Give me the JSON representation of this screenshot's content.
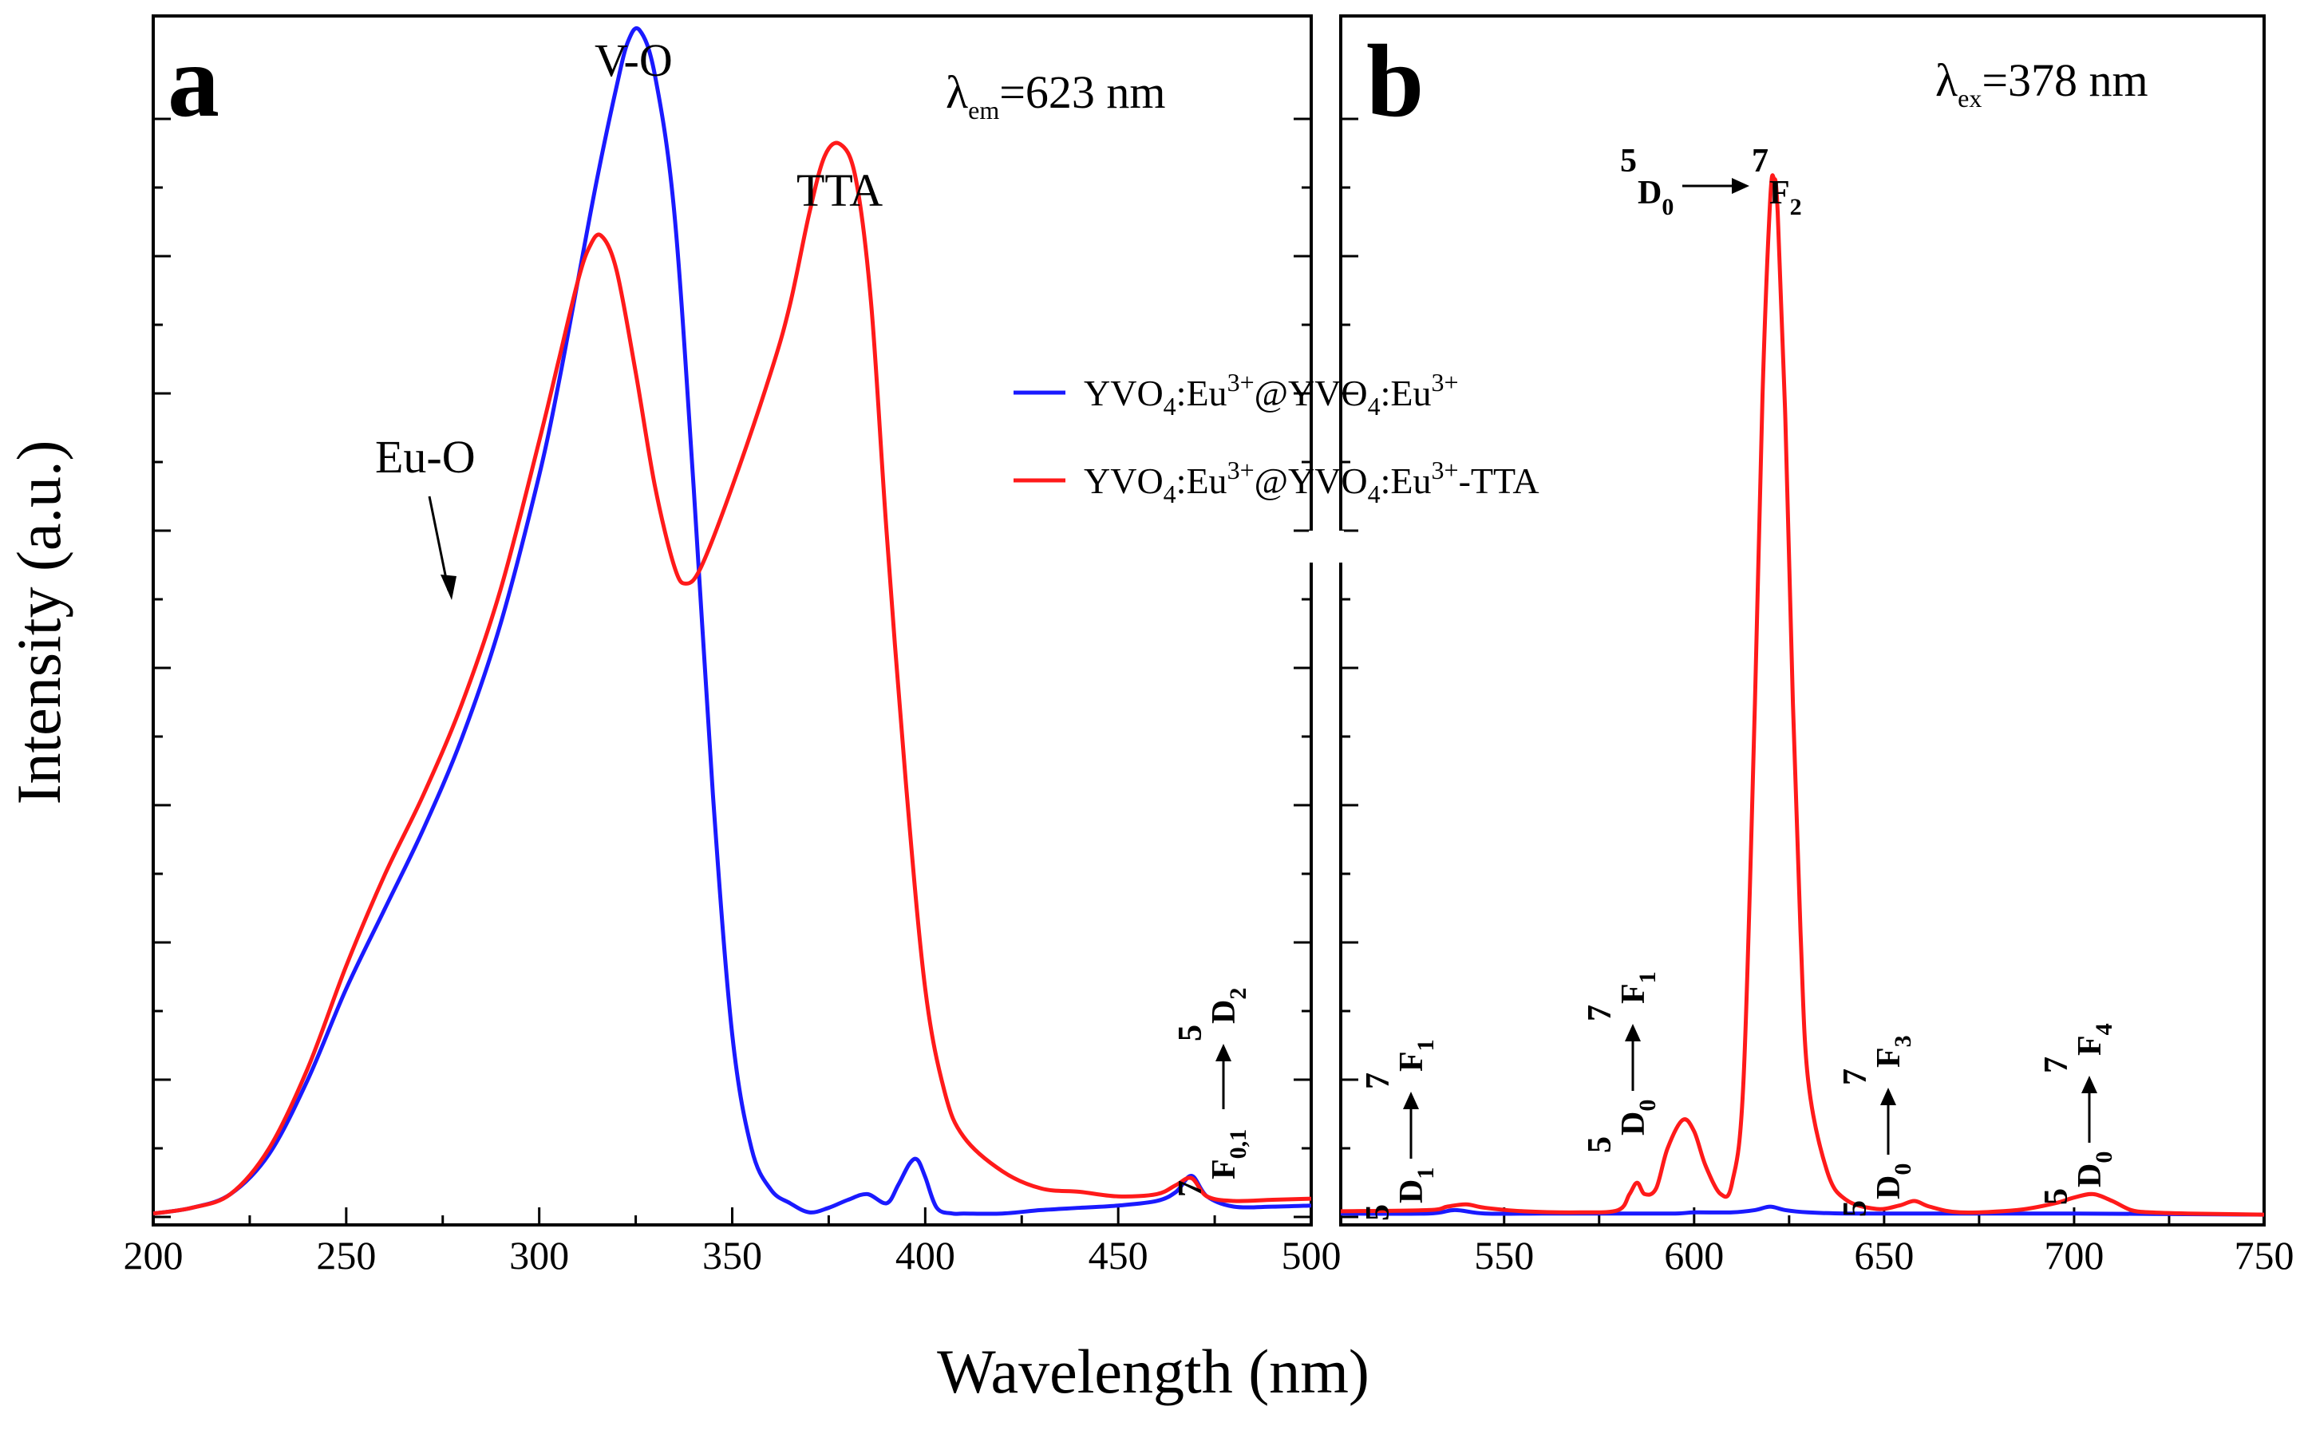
{
  "ylabel": "Intensity (a.u.)",
  "xlabel": "Wavelength (nm)",
  "chart_data": [
    {
      "type": "line",
      "panel": "a",
      "xlim": [
        200,
        500
      ],
      "ylim": [
        0,
        1.05
      ],
      "xticks": [
        200,
        250,
        300,
        350,
        400,
        450,
        500
      ],
      "tick_labels": [
        "200",
        "250",
        "300",
        "350",
        "400",
        "450",
        "500"
      ],
      "annotation": {
        "lambda": "λ",
        "sub": "em",
        "value": "=623 nm"
      },
      "peak_labels": {
        "vo": "V-O",
        "tta": "TTA",
        "euo": "Eu-O"
      },
      "transition": {
        "lower": "7",
        "lower_sym": "F",
        "lower_sub": "0,1",
        "upper": "5",
        "upper_sym": "D",
        "upper_sub": "2"
      },
      "series": [
        {
          "name": "YVO4:Eu3+@YVO4:Eu3+",
          "color": "#1a1aff",
          "x": [
            200,
            210,
            220,
            230,
            240,
            250,
            260,
            270,
            280,
            290,
            300,
            305,
            310,
            315,
            320,
            323,
            326,
            330,
            335,
            340,
            345,
            350,
            355,
            360,
            365,
            370,
            375,
            380,
            385,
            390,
            393,
            396,
            398,
            400,
            403,
            407,
            410,
            420,
            430,
            440,
            450,
            460,
            465,
            469,
            473,
            480,
            490,
            500
          ],
          "y": [
            0.003,
            0.008,
            0.02,
            0.055,
            0.12,
            0.2,
            0.27,
            0.34,
            0.42,
            0.52,
            0.65,
            0.73,
            0.82,
            0.91,
            0.99,
            1.03,
            1.04,
            1.0,
            0.88,
            0.64,
            0.37,
            0.16,
            0.06,
            0.024,
            0.012,
            0.004,
            0.008,
            0.015,
            0.02,
            0.012,
            0.028,
            0.047,
            0.05,
            0.035,
            0.008,
            0.003,
            0.003,
            0.003,
            0.006,
            0.008,
            0.01,
            0.014,
            0.022,
            0.036,
            0.018,
            0.009,
            0.009,
            0.01
          ]
        },
        {
          "name": "YVO4:Eu3+@YVO4:Eu3+-TTA",
          "color": "#ff1a1a",
          "x": [
            200,
            210,
            220,
            230,
            240,
            250,
            260,
            270,
            280,
            290,
            300,
            305,
            310,
            313,
            316,
            320,
            325,
            330,
            335,
            338,
            342,
            350,
            360,
            365,
            370,
            374,
            378,
            382,
            386,
            390,
            395,
            400,
            405,
            410,
            420,
            430,
            440,
            450,
            460,
            465,
            469,
            473,
            480,
            490,
            500
          ],
          "y": [
            0.003,
            0.008,
            0.02,
            0.06,
            0.13,
            0.22,
            0.3,
            0.37,
            0.45,
            0.55,
            0.68,
            0.75,
            0.82,
            0.85,
            0.86,
            0.83,
            0.74,
            0.64,
            0.57,
            0.555,
            0.57,
            0.64,
            0.74,
            0.8,
            0.88,
            0.93,
            0.94,
            0.91,
            0.8,
            0.6,
            0.38,
            0.2,
            0.11,
            0.07,
            0.04,
            0.025,
            0.022,
            0.018,
            0.02,
            0.028,
            0.034,
            0.018,
            0.014,
            0.015,
            0.016
          ]
        }
      ]
    },
    {
      "type": "line",
      "panel": "b",
      "xlim": [
        507,
        750
      ],
      "ylim": [
        0,
        1.05
      ],
      "xticks": [
        550,
        600,
        650,
        700,
        750
      ],
      "tick_labels": [
        "550",
        "600",
        "650",
        "700",
        "750"
      ],
      "annotation": {
        "lambda": "λ",
        "sub": "ex",
        "value": "=378 nm"
      },
      "transitions": [
        {
          "lower": "5",
          "lower_sym": "D",
          "lower_sub": "0",
          "upper": "7",
          "upper_sym": "F",
          "upper_sub": "2"
        },
        {
          "lower": "5",
          "lower_sym": "D",
          "lower_sub": "1",
          "upper": "7",
          "upper_sym": "F",
          "upper_sub": "1"
        },
        {
          "lower": "5",
          "lower_sym": "D",
          "lower_sub": "0",
          "upper": "7",
          "upper_sym": "F",
          "upper_sub": "1"
        },
        {
          "lower": "5",
          "lower_sym": "D",
          "lower_sub": "0",
          "upper": "7",
          "upper_sym": "F",
          "upper_sub": "3"
        },
        {
          "lower": "5",
          "lower_sym": "D",
          "lower_sub": "0",
          "upper": "7",
          "upper_sym": "F",
          "upper_sub": "4"
        }
      ],
      "series": [
        {
          "name": "YVO4:Eu3+@YVO4:Eu3+",
          "color": "#1a1aff",
          "x": [
            507,
            530,
            537,
            545,
            560,
            580,
            595,
            600,
            610,
            616,
            620,
            624,
            630,
            640,
            660,
            700,
            750
          ],
          "y": [
            0.003,
            0.003,
            0.006,
            0.003,
            0.003,
            0.003,
            0.003,
            0.004,
            0.004,
            0.006,
            0.009,
            0.006,
            0.004,
            0.003,
            0.003,
            0.003,
            0.002
          ]
        },
        {
          "name": "YVO4:Eu3+@YVO4:Eu3+-TTA",
          "color": "#ff1a1a",
          "x": [
            507,
            530,
            535,
            540,
            545,
            555,
            570,
            580,
            583,
            585,
            587,
            590,
            593,
            597,
            600,
            603,
            607,
            610,
            613,
            616,
            618,
            620,
            621,
            622,
            624,
            626,
            628,
            630,
            635,
            640,
            648,
            654,
            658,
            662,
            670,
            685,
            695,
            700,
            705,
            710,
            715,
            720,
            730,
            750
          ],
          "y": [
            0.005,
            0.006,
            0.009,
            0.011,
            0.008,
            0.005,
            0.004,
            0.006,
            0.02,
            0.03,
            0.02,
            0.025,
            0.06,
            0.085,
            0.075,
            0.045,
            0.02,
            0.03,
            0.12,
            0.45,
            0.72,
            0.89,
            0.91,
            0.88,
            0.7,
            0.45,
            0.25,
            0.12,
            0.04,
            0.015,
            0.007,
            0.01,
            0.014,
            0.009,
            0.004,
            0.006,
            0.012,
            0.017,
            0.02,
            0.014,
            0.006,
            0.004,
            0.003,
            0.002
          ]
        }
      ]
    }
  ],
  "legend": [
    {
      "base1": "YVO",
      "sub1": "4",
      "mid1": ":Eu",
      "sup1": "3+",
      "mid2": "@YVO",
      "sub2": "4",
      "mid3": ":Eu",
      "sup2": "3+",
      "tail": ""
    },
    {
      "base1": "YVO",
      "sub1": "4",
      "mid1": ":Eu",
      "sup1": "3+",
      "mid2": "@YVO",
      "sub2": "4",
      "mid3": ":Eu",
      "sup2": "3+",
      "tail": "-TTA"
    }
  ]
}
